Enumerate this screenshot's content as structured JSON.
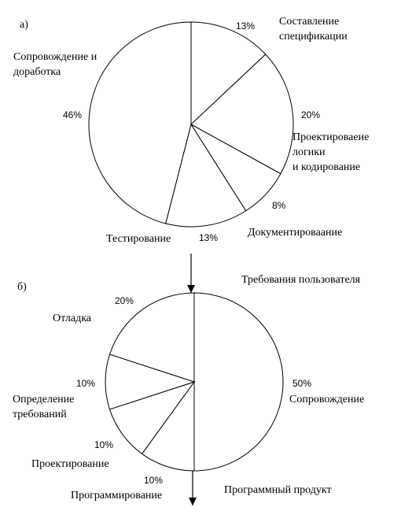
{
  "chart_data": [
    {
      "type": "pie",
      "panel_label": "а)",
      "categories": [
        "Составление\nспецификации",
        "Проектироваеие\nлогики\nи кодирование",
        "Документироваание",
        "Тестирование",
        "Сопровождение и\nдоработка"
      ],
      "values": [
        13,
        20,
        8,
        13,
        46
      ],
      "value_labels": [
        "13%",
        "20%",
        "8%",
        "13%",
        "46%"
      ],
      "color": "#ffffff"
    },
    {
      "type": "pie",
      "panel_label": "б)",
      "annotations": [
        "Требования пользователя",
        "Программный продукт"
      ],
      "categories": [
        "Сопровождение",
        "Программирование",
        "Проектирование",
        "Определение\nтребований",
        "Отладка"
      ],
      "values": [
        50,
        10,
        10,
        10,
        20
      ],
      "value_labels": [
        "50%",
        "10%",
        "10%",
        "10%",
        "20%"
      ],
      "color": "#ffffff"
    }
  ]
}
